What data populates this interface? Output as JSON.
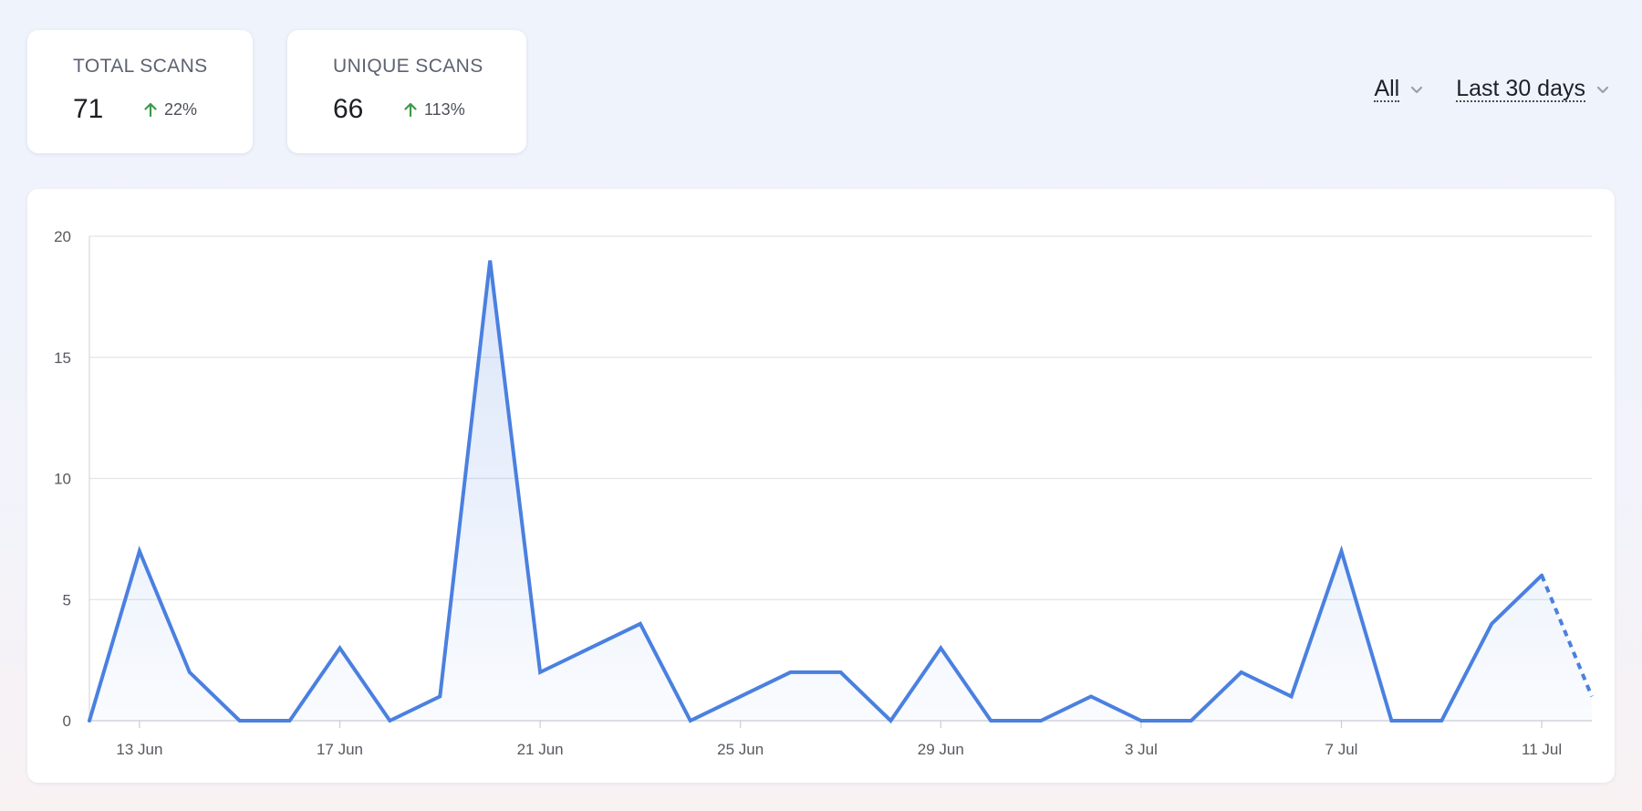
{
  "stats": {
    "total": {
      "label": "TOTAL SCANS",
      "value": "71",
      "change": "22%"
    },
    "unique": {
      "label": "UNIQUE SCANS",
      "value": "66",
      "change": "113%"
    }
  },
  "filters": {
    "segment": "All",
    "period": "Last 30 days"
  },
  "colors": {
    "line": "#4a80e0",
    "up_arrow": "#3d9a4a"
  },
  "chart_data": {
    "type": "area",
    "x": [
      "12 Jun",
      "13 Jun",
      "14 Jun",
      "15 Jun",
      "16 Jun",
      "17 Jun",
      "18 Jun",
      "19 Jun",
      "20 Jun",
      "21 Jun",
      "22 Jun",
      "23 Jun",
      "24 Jun",
      "25 Jun",
      "26 Jun",
      "27 Jun",
      "28 Jun",
      "29 Jun",
      "30 Jun",
      "1 Jul",
      "2 Jul",
      "3 Jul",
      "4 Jul",
      "5 Jul",
      "6 Jul",
      "7 Jul",
      "8 Jul",
      "9 Jul",
      "10 Jul",
      "11 Jul",
      "12 Jul"
    ],
    "values": [
      0,
      7,
      2,
      0,
      0,
      3,
      0,
      1,
      19,
      2,
      3,
      4,
      0,
      1,
      2,
      2,
      0,
      3,
      0,
      0,
      1,
      0,
      0,
      2,
      1,
      7,
      0,
      0,
      4,
      6,
      1
    ],
    "partial_from_index": 29,
    "ylim": [
      0,
      20
    ],
    "yticks": [
      0,
      5,
      10,
      15,
      20
    ],
    "xtick_labels": [
      "13 Jun",
      "17 Jun",
      "21 Jun",
      "25 Jun",
      "29 Jun",
      "3 Jul",
      "7 Jul",
      "11 Jul"
    ],
    "xtick_indices": [
      1,
      5,
      9,
      13,
      17,
      21,
      25,
      29
    ],
    "grid": true,
    "title": "",
    "xlabel": "",
    "ylabel": ""
  }
}
